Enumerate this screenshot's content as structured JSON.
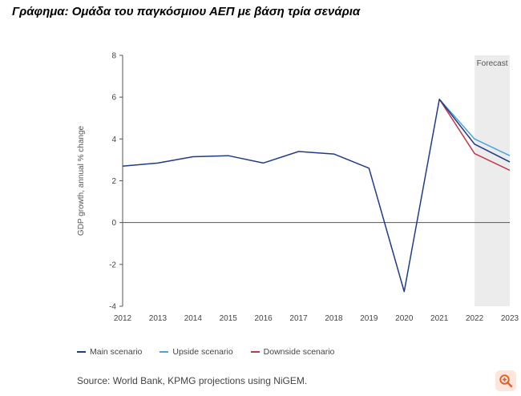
{
  "title": "Γράφημα: Ομάδα του παγκόσμιου ΑΕΠ με βάση τρία σενάρια",
  "source": "Source: World Bank, KPMG projections using NiGEM.",
  "zoom_icon": "zoom-in-icon",
  "chart_data": {
    "type": "line",
    "ylabel": "GDP growth, annual % change",
    "xlabel": "",
    "ylim": [
      -4,
      8
    ],
    "yticks": [
      -4,
      -2,
      0,
      2,
      4,
      6,
      8
    ],
    "x": [
      2012,
      2013,
      2014,
      2015,
      2016,
      2017,
      2018,
      2019,
      2020,
      2021,
      2022,
      2023
    ],
    "forecast_label": "Forecast",
    "forecast_range": [
      2022,
      2023
    ],
    "series": [
      {
        "name": "Upside scenario",
        "color": "#4aa3df",
        "x": [
          2021,
          2022,
          2023
        ],
        "values": [
          5.9,
          4.0,
          3.2
        ]
      },
      {
        "name": "Downside scenario",
        "color": "#c8354e",
        "x": [
          2021,
          2022,
          2023
        ],
        "values": [
          5.9,
          3.3,
          2.5
        ]
      },
      {
        "name": "Main scenario",
        "color": "#1f3c88",
        "x": [
          2012,
          2013,
          2014,
          2015,
          2016,
          2017,
          2018,
          2019,
          2020,
          2021,
          2022,
          2023
        ],
        "values": [
          2.7,
          2.85,
          3.15,
          3.2,
          2.85,
          3.4,
          3.28,
          2.6,
          -3.3,
          5.9,
          3.75,
          2.9
        ]
      }
    ]
  },
  "legend": [
    {
      "label": "Main scenario",
      "color": "#1f3c88"
    },
    {
      "label": "Upside scenario",
      "color": "#4aa3df"
    },
    {
      "label": "Downside scenario",
      "color": "#c8354e"
    }
  ]
}
